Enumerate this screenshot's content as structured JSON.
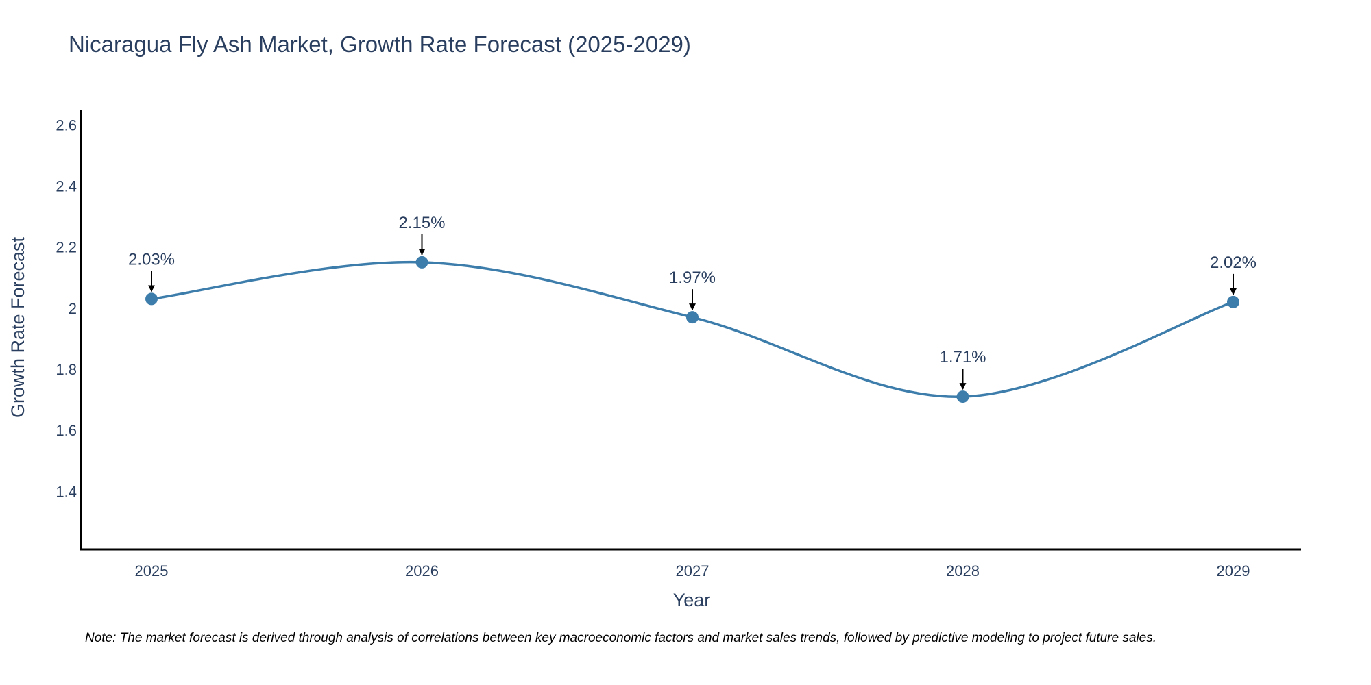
{
  "chart_data": {
    "type": "line",
    "title": "Nicaragua Fly Ash Market, Growth Rate Forecast (2025-2029)",
    "xlabel": "Year",
    "ylabel": "Growth Rate Forecast",
    "categories": [
      "2025",
      "2026",
      "2027",
      "2028",
      "2029"
    ],
    "series": [
      {
        "name": "Growth Rate Forecast",
        "values": [
          2.03,
          2.15,
          1.97,
          1.71,
          2.02
        ],
        "color": "#3d7dab",
        "line_shape": "spline"
      }
    ],
    "annotations": [
      "2.03%",
      "2.15%",
      "1.97%",
      "1.71%",
      "2.02%"
    ],
    "y_ticks": [
      "1.4",
      "1.6",
      "1.8",
      "2",
      "2.2",
      "2.4",
      "2.6"
    ],
    "y_tick_values": [
      1.4,
      1.6,
      1.8,
      2.0,
      2.2,
      2.4,
      2.6
    ],
    "ylim": [
      1.21,
      2.65
    ],
    "grid": false,
    "legend": "none",
    "axis_color": "#000000",
    "annotation_arrow_color": "#000000",
    "note": "Note: The market forecast is derived through analysis of correlations between key macroeconomic factors and market sales trends, followed by predictive modeling to project future sales."
  }
}
